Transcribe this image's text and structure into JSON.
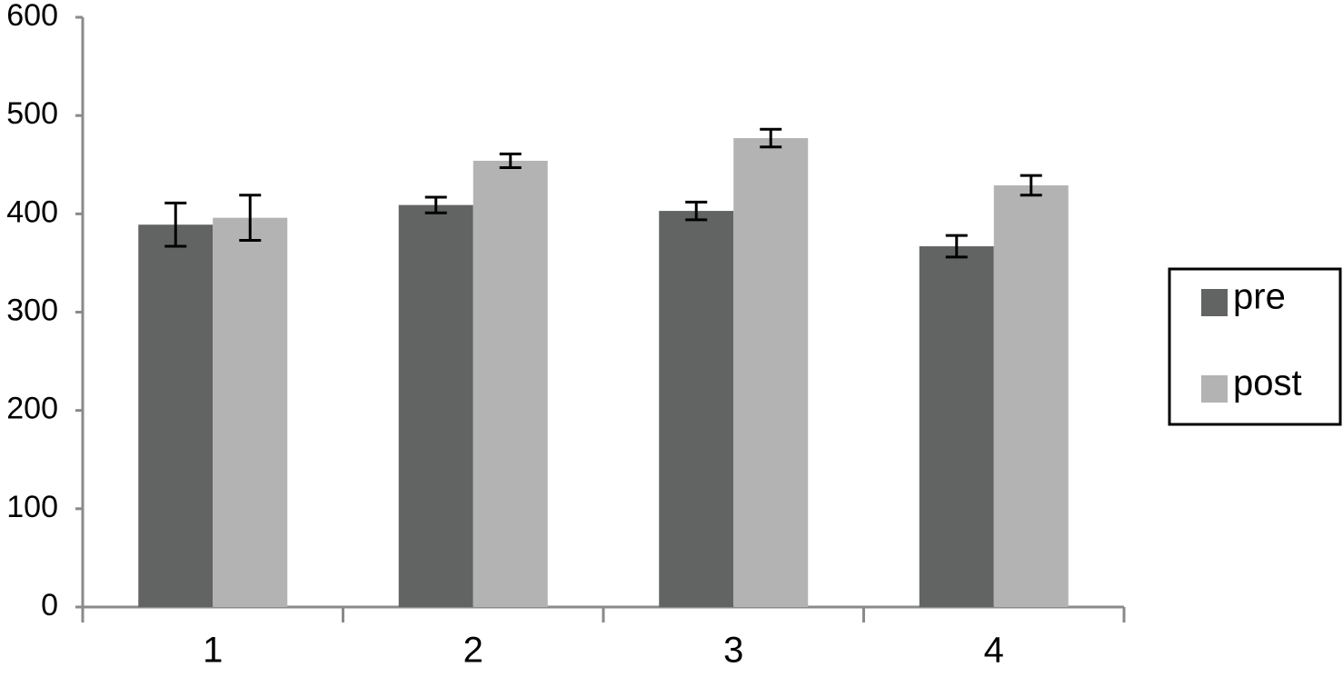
{
  "chart_data": {
    "type": "bar",
    "categories": [
      "1",
      "2",
      "3",
      "4"
    ],
    "series": [
      {
        "name": "pre",
        "color": "#626463",
        "values": [
          389,
          409,
          403,
          367
        ],
        "errors": [
          22,
          8,
          9,
          11
        ]
      },
      {
        "name": "post",
        "color": "#b3b3b3",
        "values": [
          396,
          454,
          477,
          429
        ],
        "errors": [
          23,
          7,
          9,
          10
        ]
      }
    ],
    "ylim": [
      0,
      600
    ],
    "yticks": [
      0,
      100,
      200,
      300,
      400,
      500,
      600
    ],
    "legend": "right"
  }
}
